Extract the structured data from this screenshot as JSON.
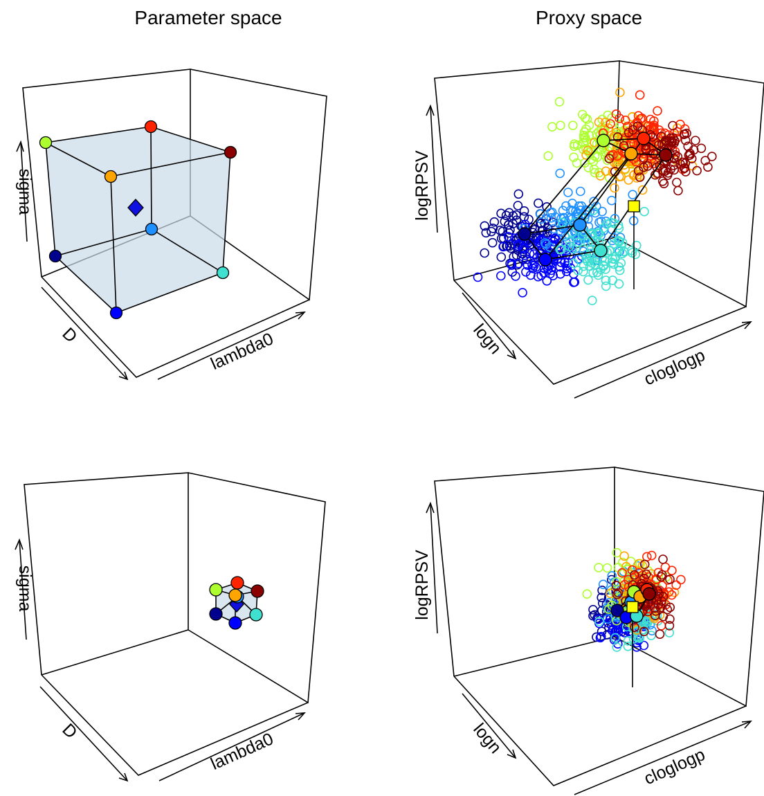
{
  "figure": {
    "col_titles": [
      "Parameter space",
      "Proxy space"
    ]
  },
  "design_colors": [
    "#00008F",
    "#0000FF",
    "#1E90FF",
    "#00BFFF",
    "#40E0D0",
    "#ADFF2F",
    "#FFA500",
    "#FF2400",
    "#8B0000"
  ],
  "chart_data": [
    {
      "panel": "top-left",
      "type": "scatter3d",
      "axes": {
        "x": "lambda0",
        "y": "D",
        "z": "sigma"
      },
      "design_points": [
        {
          "label": "---",
          "color": "#00008F"
        },
        {
          "label": "+--",
          "color": "#0000FF"
        },
        {
          "label": "-+-",
          "color": "#1E90FF"
        },
        {
          "label": "++-",
          "color": "#40E0D0"
        },
        {
          "label": "--+",
          "color": "#ADFF2F"
        },
        {
          "label": "+-+",
          "color": "#FFA500"
        },
        {
          "label": "-++",
          "color": "#FF2400"
        },
        {
          "label": "+++",
          "color": "#8B0000"
        }
      ],
      "centre": {
        "marker": "diamond",
        "color": "#1010E0"
      },
      "box_range": "wide"
    },
    {
      "panel": "top-right",
      "type": "scatter3d",
      "axes": {
        "x": "cloglogp",
        "y": "logn",
        "z": "logRPSV"
      },
      "point_clouds": 8,
      "target": {
        "marker": "square",
        "color": "#FFFF00"
      },
      "spread": "wide"
    },
    {
      "panel": "bottom-left",
      "type": "scatter3d",
      "axes": {
        "x": "lambda0",
        "y": "D",
        "z": "sigma"
      },
      "box_range": "narrow"
    },
    {
      "panel": "bottom-right",
      "type": "scatter3d",
      "axes": {
        "x": "cloglogp",
        "y": "logn",
        "z": "logRPSV"
      },
      "point_clouds": 8,
      "target": {
        "marker": "square",
        "color": "#FFFF00"
      },
      "spread": "narrow"
    }
  ]
}
